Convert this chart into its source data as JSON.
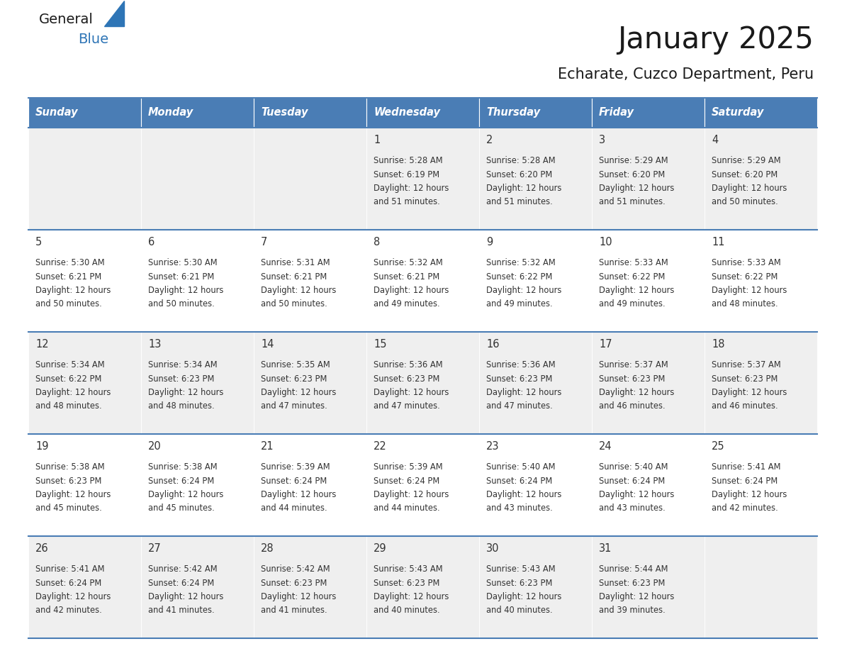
{
  "title": "January 2025",
  "subtitle": "Echarate, Cuzco Department, Peru",
  "days_of_week": [
    "Sunday",
    "Monday",
    "Tuesday",
    "Wednesday",
    "Thursday",
    "Friday",
    "Saturday"
  ],
  "header_bg": "#4A7DB5",
  "header_text": "#FFFFFF",
  "cell_bg_odd": "#EFEFEF",
  "cell_bg_even": "#FFFFFF",
  "cell_border": "#4A7DB5",
  "title_color": "#1a1a1a",
  "subtitle_color": "#1a1a1a",
  "text_color": "#333333",
  "logo_general_color": "#1a1a1a",
  "logo_blue_color": "#2E75B6",
  "calendar": [
    [
      {
        "day": null
      },
      {
        "day": null
      },
      {
        "day": null
      },
      {
        "day": 1,
        "sunrise": "5:28 AM",
        "sunset": "6:19 PM",
        "daylight_suffix": "51 minutes."
      },
      {
        "day": 2,
        "sunrise": "5:28 AM",
        "sunset": "6:20 PM",
        "daylight_suffix": "51 minutes."
      },
      {
        "day": 3,
        "sunrise": "5:29 AM",
        "sunset": "6:20 PM",
        "daylight_suffix": "51 minutes."
      },
      {
        "day": 4,
        "sunrise": "5:29 AM",
        "sunset": "6:20 PM",
        "daylight_suffix": "50 minutes."
      }
    ],
    [
      {
        "day": 5,
        "sunrise": "5:30 AM",
        "sunset": "6:21 PM",
        "daylight_suffix": "50 minutes."
      },
      {
        "day": 6,
        "sunrise": "5:30 AM",
        "sunset": "6:21 PM",
        "daylight_suffix": "50 minutes."
      },
      {
        "day": 7,
        "sunrise": "5:31 AM",
        "sunset": "6:21 PM",
        "daylight_suffix": "50 minutes."
      },
      {
        "day": 8,
        "sunrise": "5:32 AM",
        "sunset": "6:21 PM",
        "daylight_suffix": "49 minutes."
      },
      {
        "day": 9,
        "sunrise": "5:32 AM",
        "sunset": "6:22 PM",
        "daylight_suffix": "49 minutes."
      },
      {
        "day": 10,
        "sunrise": "5:33 AM",
        "sunset": "6:22 PM",
        "daylight_suffix": "49 minutes."
      },
      {
        "day": 11,
        "sunrise": "5:33 AM",
        "sunset": "6:22 PM",
        "daylight_suffix": "48 minutes."
      }
    ],
    [
      {
        "day": 12,
        "sunrise": "5:34 AM",
        "sunset": "6:22 PM",
        "daylight_suffix": "48 minutes."
      },
      {
        "day": 13,
        "sunrise": "5:34 AM",
        "sunset": "6:23 PM",
        "daylight_suffix": "48 minutes."
      },
      {
        "day": 14,
        "sunrise": "5:35 AM",
        "sunset": "6:23 PM",
        "daylight_suffix": "47 minutes."
      },
      {
        "day": 15,
        "sunrise": "5:36 AM",
        "sunset": "6:23 PM",
        "daylight_suffix": "47 minutes."
      },
      {
        "day": 16,
        "sunrise": "5:36 AM",
        "sunset": "6:23 PM",
        "daylight_suffix": "47 minutes."
      },
      {
        "day": 17,
        "sunrise": "5:37 AM",
        "sunset": "6:23 PM",
        "daylight_suffix": "46 minutes."
      },
      {
        "day": 18,
        "sunrise": "5:37 AM",
        "sunset": "6:23 PM",
        "daylight_suffix": "46 minutes."
      }
    ],
    [
      {
        "day": 19,
        "sunrise": "5:38 AM",
        "sunset": "6:23 PM",
        "daylight_suffix": "45 minutes."
      },
      {
        "day": 20,
        "sunrise": "5:38 AM",
        "sunset": "6:24 PM",
        "daylight_suffix": "45 minutes."
      },
      {
        "day": 21,
        "sunrise": "5:39 AM",
        "sunset": "6:24 PM",
        "daylight_suffix": "44 minutes."
      },
      {
        "day": 22,
        "sunrise": "5:39 AM",
        "sunset": "6:24 PM",
        "daylight_suffix": "44 minutes."
      },
      {
        "day": 23,
        "sunrise": "5:40 AM",
        "sunset": "6:24 PM",
        "daylight_suffix": "43 minutes."
      },
      {
        "day": 24,
        "sunrise": "5:40 AM",
        "sunset": "6:24 PM",
        "daylight_suffix": "43 minutes."
      },
      {
        "day": 25,
        "sunrise": "5:41 AM",
        "sunset": "6:24 PM",
        "daylight_suffix": "42 minutes."
      }
    ],
    [
      {
        "day": 26,
        "sunrise": "5:41 AM",
        "sunset": "6:24 PM",
        "daylight_suffix": "42 minutes."
      },
      {
        "day": 27,
        "sunrise": "5:42 AM",
        "sunset": "6:24 PM",
        "daylight_suffix": "41 minutes."
      },
      {
        "day": 28,
        "sunrise": "5:42 AM",
        "sunset": "6:23 PM",
        "daylight_suffix": "41 minutes."
      },
      {
        "day": 29,
        "sunrise": "5:43 AM",
        "sunset": "6:23 PM",
        "daylight_suffix": "40 minutes."
      },
      {
        "day": 30,
        "sunrise": "5:43 AM",
        "sunset": "6:23 PM",
        "daylight_suffix": "40 minutes."
      },
      {
        "day": 31,
        "sunrise": "5:44 AM",
        "sunset": "6:23 PM",
        "daylight_suffix": "39 minutes."
      },
      {
        "day": null
      }
    ]
  ]
}
